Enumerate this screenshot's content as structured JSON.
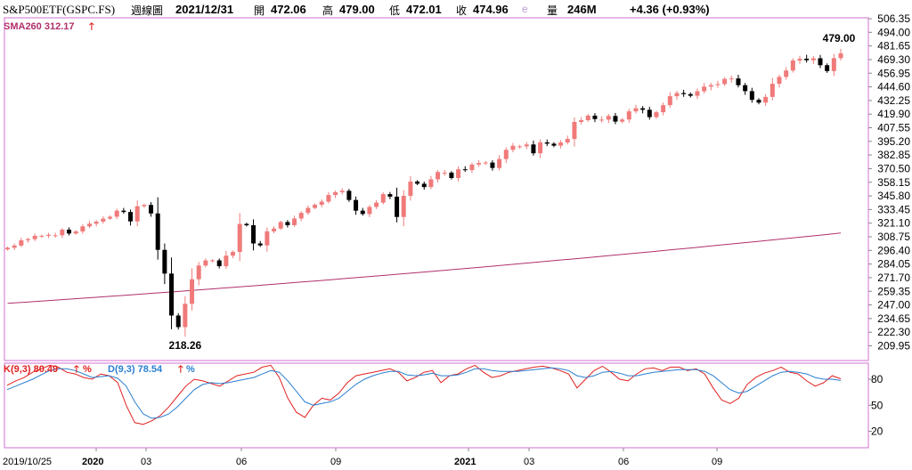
{
  "header": {
    "symbol": "S&P500ETF(GSPC.FS)",
    "period": "週線圖",
    "date": "2021/12/31",
    "open_label": "開",
    "open": "472.06",
    "high_label": "高",
    "high": "479.00",
    "low_label": "低",
    "low": "472.01",
    "close_label": "收",
    "close": "474.96",
    "e_flag": "e",
    "volume_label": "量",
    "volume": "246M",
    "change": "+4.36 (+0.93%)"
  },
  "indicators": {
    "sma_label": "SMA260 312.17",
    "k_label": "K(9,3) 80.49",
    "k_unit": "%",
    "d_label": "D(9,3) 78.54",
    "d_unit": "%"
  },
  "colors": {
    "up_candle": "#f07a7a",
    "down_candle": "#000000",
    "sma_line": "#b0306a",
    "k_line": "#e02020",
    "d_line": "#2a7fd0",
    "frame": "#d070d0",
    "grid_text": "#000000"
  },
  "chart_data": [
    {
      "type": "candlestick",
      "title": "S&P500ETF(GSPC.FS) 週線圖",
      "ylim": [
        209.95,
        506.35
      ],
      "y_ticks": [
        "506.35",
        "494.00",
        "481.65",
        "469.30",
        "456.95",
        "444.60",
        "432.25",
        "419.90",
        "407.55",
        "395.20",
        "382.85",
        "370.50",
        "358.15",
        "345.80",
        "333.45",
        "321.10",
        "308.75",
        "296.40",
        "284.05",
        "271.70",
        "259.35",
        "247.00",
        "234.65",
        "222.30",
        "209.95"
      ],
      "x_labels": [
        "2019/10/25",
        "2020",
        "03",
        "06",
        "09",
        "2021",
        "03",
        "06",
        "09"
      ],
      "annotations": [
        {
          "text": "479.00",
          "kind": "high"
        },
        {
          "text": "218.26",
          "kind": "low"
        }
      ],
      "close_series": [
        298.8,
        300.8,
        305.6,
        306.6,
        309.6,
        309.6,
        310.6,
        310.1,
        315.2,
        311.7,
        313.6,
        318.2,
        320.6,
        322.5,
        325.2,
        326.9,
        332.4,
        331.2,
        322.7,
        336.4,
        337.6,
        329.9,
        296.9,
        275.4,
        237.4,
        226.9,
        248.0,
        270.3,
        282.7,
        287.3,
        287.4,
        282.1,
        291.7,
        295.0,
        320.4,
        319.2,
        302.7,
        300.9,
        313.7,
        316.2,
        322.1,
        319.3,
        325.3,
        330.4,
        334.9,
        337.8,
        340.6,
        346.6,
        349.1,
        350.4,
        342.1,
        332.4,
        329.4,
        335.8,
        339.7,
        347.4,
        345.1,
        326.7,
        345.8,
        358.8,
        356.8,
        353.8,
        360.8,
        367.4,
        366.9,
        362.0,
        369.9,
        369.2,
        374.2,
        375.6,
        376.0,
        371.1,
        379.2,
        387.5,
        391.2,
        390.7,
        392.4,
        384.4,
        394.3,
        393.1,
        391.3,
        394.2,
        397.4,
        412.8,
        414.4,
        418.5,
        415.4,
        414.9,
        418.2,
        413.1,
        415.0,
        422.4,
        425.2,
        423.8,
        417.2,
        421.6,
        428.0,
        436.1,
        439.0,
        438.0,
        436.5,
        440.6,
        444.8,
        446.2,
        447.1,
        451.8,
        452.2,
        446.1,
        440.7,
        432.8,
        430.3,
        435.5,
        447.4,
        453.6,
        459.4,
        468.5,
        470.1,
        468.7,
        470.5,
        464.2,
        458.9,
        470.6,
        474.96
      ],
      "sma260": {
        "start": 248.5,
        "end": 312.17
      },
      "subcharts": [
        {
          "type": "line",
          "name": "KD(9,3)",
          "ylim": [
            0,
            100
          ],
          "y_ticks": [
            20,
            50,
            80
          ],
          "series": [
            {
              "name": "K(9,3)",
              "values": [
                73,
                78,
                82,
                88,
                92,
                96,
                94,
                88,
                86,
                82,
                80,
                86,
                84,
                76,
                50,
                30,
                28,
                32,
                38,
                48,
                60,
                72,
                80,
                78,
                75,
                72,
                78,
                84,
                86,
                88,
                94,
                96,
                82,
                58,
                42,
                36,
                50,
                58,
                56,
                64,
                76,
                84,
                86,
                88,
                90,
                92,
                88,
                78,
                82,
                88,
                90,
                76,
                84,
                86,
                92,
                96,
                88,
                82,
                84,
                88,
                90,
                92,
                94,
                95,
                93,
                90,
                86,
                70,
                80,
                90,
                95,
                88,
                80,
                78,
                86,
                92,
                93,
                90,
                94,
                94,
                90,
                92,
                86,
                70,
                56,
                52,
                58,
                74,
                82,
                87,
                90,
                94,
                88,
                86,
                78,
                72,
                76,
                84,
                80.49
              ]
            },
            {
              "name": "D(9,3)",
              "values": [
                68,
                72,
                76,
                80,
                85,
                90,
                92,
                92,
                90,
                86,
                82,
                83,
                84,
                81,
                72,
                54,
                40,
                35,
                36,
                40,
                48,
                58,
                68,
                74,
                76,
                75,
                76,
                78,
                80,
                82,
                86,
                90,
                88,
                78,
                66,
                54,
                50,
                52,
                54,
                58,
                66,
                74,
                80,
                84,
                87,
                89,
                89,
                85,
                84,
                85,
                87,
                84,
                84,
                85,
                88,
                92,
                92,
                90,
                89,
                89,
                89,
                90,
                91,
                92,
                93,
                92,
                90,
                84,
                82,
                84,
                88,
                89,
                87,
                84,
                84,
                86,
                88,
                89,
                90,
                91,
                91,
                91,
                89,
                84,
                76,
                68,
                64,
                66,
                72,
                78,
                84,
                88,
                89,
                88,
                86,
                82,
                80,
                80,
                78.54
              ]
            }
          ]
        }
      ]
    }
  ]
}
